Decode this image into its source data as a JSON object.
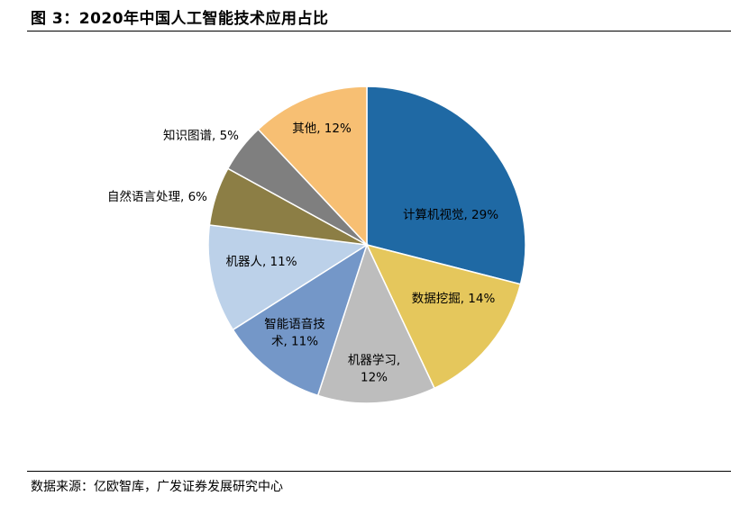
{
  "title": "图 3：2020年中国人工智能技术应用占比",
  "source": "数据来源：亿欧智库，广发证券发展研究中心",
  "chart_data": {
    "type": "pie",
    "title": "2020年中国人工智能技术应用占比",
    "unit": "%",
    "slices": [
      {
        "label": "计算机视觉",
        "value": 29,
        "value_text": "29%",
        "color": "#1f69a4"
      },
      {
        "label": "数据挖掘",
        "value": 14,
        "value_text": "14%",
        "color": "#e5c75c"
      },
      {
        "label": "机器学习",
        "value": 12,
        "value_text": "12%",
        "color": "#bdbdbd"
      },
      {
        "label": "智能语音技术",
        "value": 11,
        "value_text": "11%",
        "color": "#7497c8"
      },
      {
        "label": "机器人",
        "value": 11,
        "value_text": "11%",
        "color": "#bcd1e9"
      },
      {
        "label": "自然语言处理",
        "value": 6,
        "value_text": "6%",
        "color": "#8c7e45"
      },
      {
        "label": "知识图谱",
        "value": 5,
        "value_text": "5%",
        "color": "#7f7f7f"
      },
      {
        "label": "其他",
        "value": 12,
        "value_text": "12%",
        "color": "#f7bf73"
      }
    ]
  }
}
